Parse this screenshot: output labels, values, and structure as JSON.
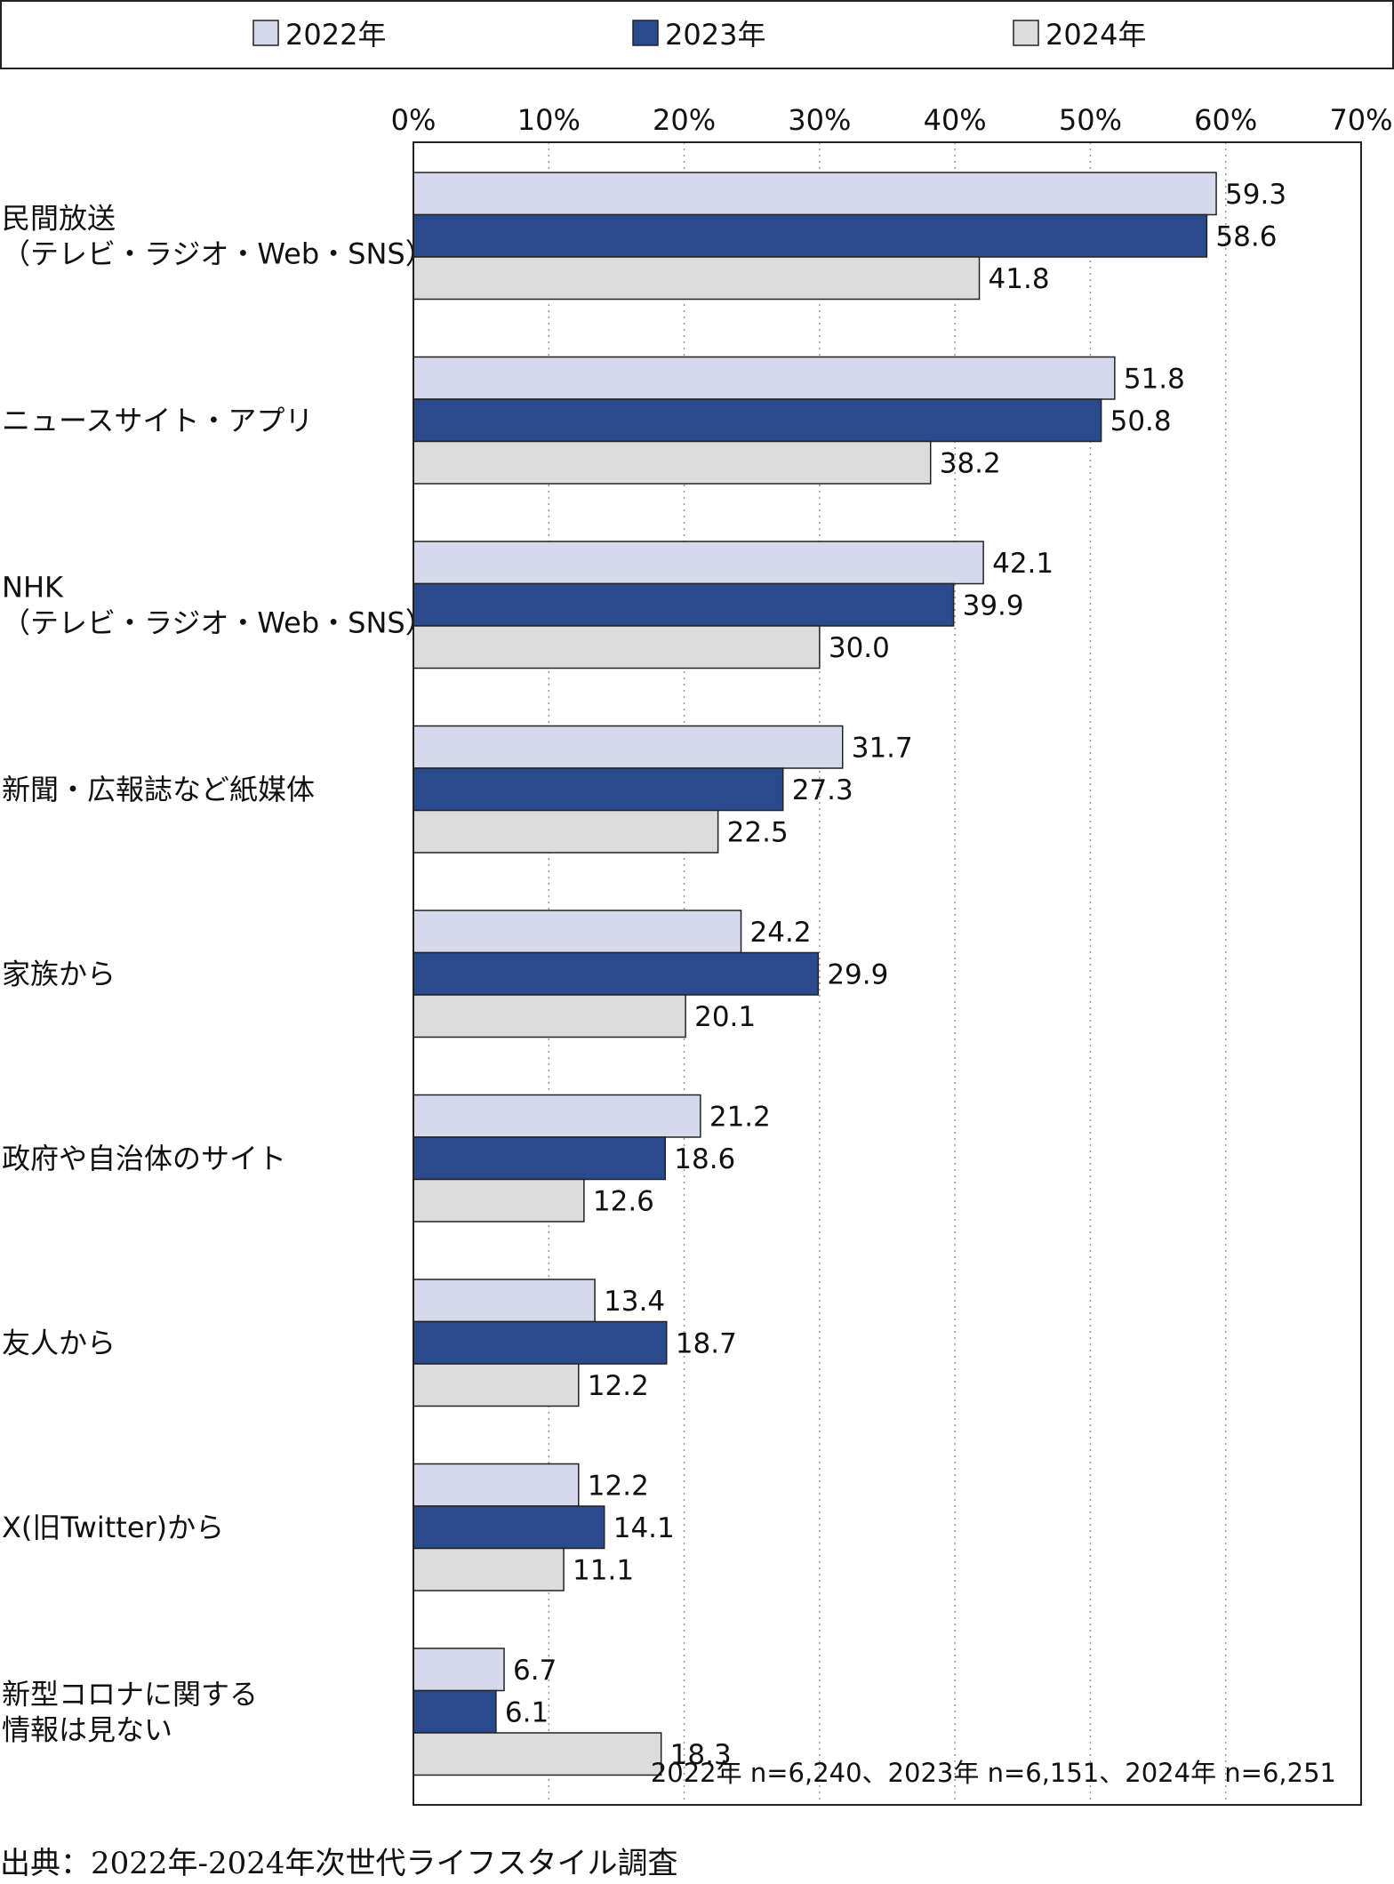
{
  "chart_data": {
    "type": "bar",
    "orientation": "horizontal",
    "categories": [
      [
        "民間放送",
        "（テレビ・ラジオ・Web・SNS）"
      ],
      [
        "ニュースサイト・アプリ"
      ],
      [
        "NHK",
        "（テレビ・ラジオ・Web・SNS）"
      ],
      [
        "新聞・広報誌など紙媒体"
      ],
      [
        "家族から"
      ],
      [
        "政府や自治体のサイト"
      ],
      [
        "友人から"
      ],
      [
        "X(旧Twitter)から"
      ],
      [
        "新型コロナに関する",
        "情報は見ない"
      ]
    ],
    "series": [
      {
        "name": "2022年",
        "color": "#d6d9ec",
        "values": [
          59.3,
          51.8,
          42.1,
          31.7,
          24.2,
          21.2,
          13.4,
          12.2,
          6.7
        ]
      },
      {
        "name": "2023年",
        "color": "#2b4a8e",
        "values": [
          58.6,
          50.8,
          39.9,
          27.3,
          29.9,
          18.6,
          18.7,
          14.1,
          6.1
        ]
      },
      {
        "name": "2024年",
        "color": "#dcdcdc",
        "values": [
          41.8,
          38.2,
          30.0,
          22.5,
          20.1,
          12.6,
          12.2,
          11.1,
          18.3
        ]
      }
    ],
    "xlim": [
      0,
      70
    ],
    "xticks": [
      "0%",
      "10%",
      "20%",
      "30%",
      "40%",
      "50%",
      "60%",
      "70%"
    ],
    "grid": "vertical dotted",
    "legend": "top",
    "annotation": "2022年 n=6,240、2023年 n=6,151、2024年 n=6,251"
  },
  "source": "出典：2022年-2024年次世代ライフスタイル調査"
}
